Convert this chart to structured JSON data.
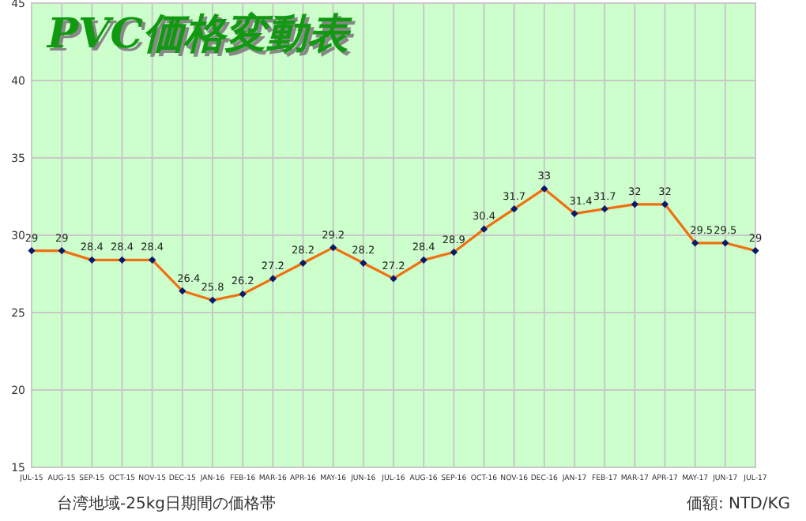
{
  "chart_data": {
    "type": "line",
    "title": "PVC価格変動表",
    "categories": [
      "JUL-15",
      "AUG-15",
      "SEP-15",
      "OCT-15",
      "NOV-15",
      "DEC-15",
      "JAN-16",
      "FEB-16",
      "MAR-16",
      "APR-16",
      "MAY-16",
      "JUN-16",
      "JUL-16",
      "AUG-16",
      "SEP-16",
      "OCT-16",
      "NOV-16",
      "DEC-16",
      "JAN-17",
      "FEB-17",
      "MAR-17",
      "APR-17",
      "MAY-17",
      "JUN-17",
      "JUL-17"
    ],
    "series": [
      {
        "color": "#f07010",
        "values": [
          29,
          29,
          28.4,
          28.4,
          28.4,
          26.4,
          25.8,
          26.2,
          27.2,
          28.2,
          29.2,
          28.2,
          27.2,
          28.4,
          28.9,
          30.4,
          31.7,
          33,
          31.4,
          31.7,
          32,
          32,
          29.5,
          29.5,
          29
        ]
      }
    ],
    "ylim": [
      15,
      45
    ],
    "yticks": [
      15,
      20,
      25,
      30,
      35,
      40,
      45
    ],
    "grid": true,
    "marker": "diamond",
    "data_labels": true,
    "annotations": [
      "台湾地域-25kg日期間の価格帯",
      "価額: NTD/KG"
    ]
  }
}
